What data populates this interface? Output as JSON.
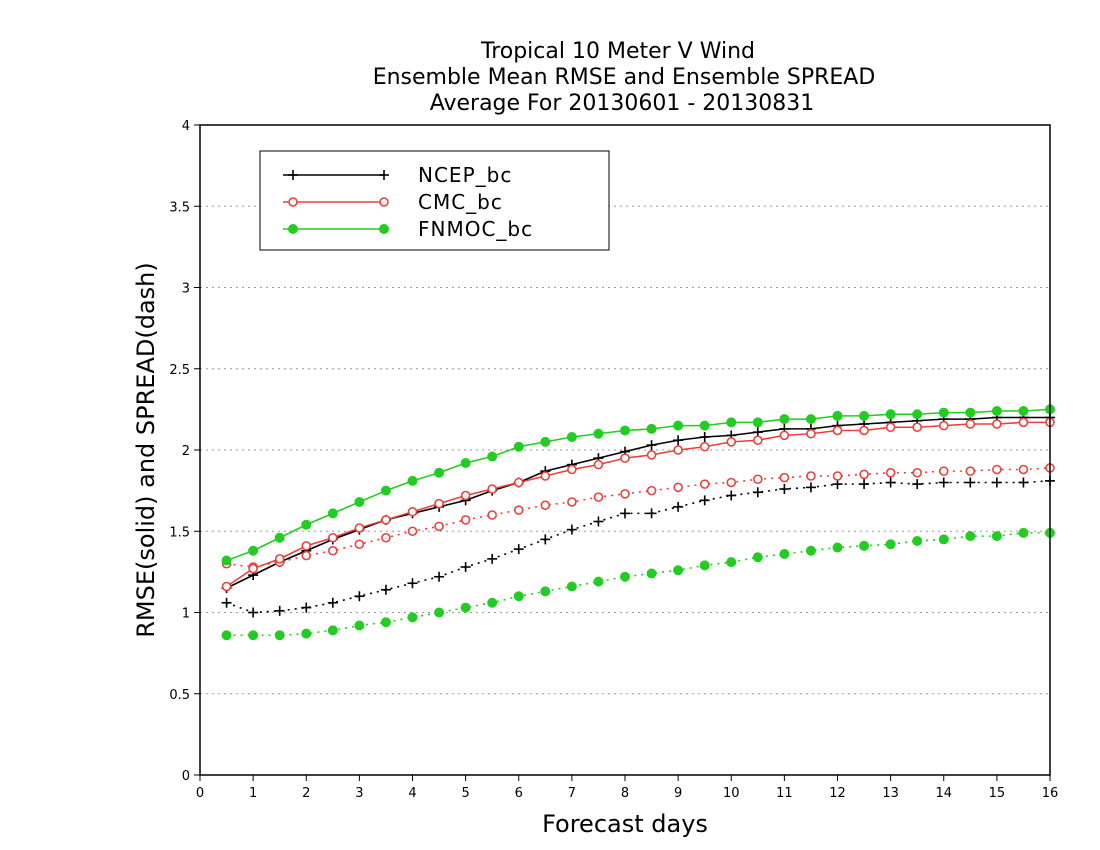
{
  "chart_data": {
    "type": "line",
    "title_lines": [
      "Tropical 10 Meter V Wind",
      "Ensemble Mean RMSE and Ensemble SPREAD",
      "Average For 20130601 - 20130831"
    ],
    "xlabel": "Forecast days",
    "ylabel": "RMSE(solid) and SPREAD(dash)",
    "xlim": [
      0,
      16
    ],
    "ylim": [
      0,
      4
    ],
    "xticks": [
      "0",
      "1",
      "2",
      "3",
      "4",
      "5",
      "6",
      "7",
      "8",
      "9",
      "10",
      "11",
      "12",
      "13",
      "14",
      "15",
      "16"
    ],
    "yticks": [
      "0",
      "0.5",
      "1",
      "1.5",
      "2",
      "2.5",
      "3",
      "3.5",
      "4"
    ],
    "grid": "horizontal dotted",
    "legend_position": "top-left",
    "x": [
      0.5,
      1,
      1.5,
      2,
      2.5,
      3,
      3.5,
      4,
      4.5,
      5,
      5.5,
      6,
      6.5,
      7,
      7.5,
      8,
      8.5,
      9,
      9.5,
      10,
      10.5,
      11,
      11.5,
      12,
      12.5,
      13,
      13.5,
      14,
      14.5,
      15,
      15.5,
      16
    ],
    "series": [
      {
        "name": "NCEP_bc",
        "color": "#000000",
        "marker": "plus",
        "rmse": [
          1.15,
          1.23,
          1.31,
          1.38,
          1.45,
          1.51,
          1.57,
          1.61,
          1.65,
          1.69,
          1.75,
          1.8,
          1.87,
          1.91,
          1.95,
          1.99,
          2.03,
          2.06,
          2.08,
          2.09,
          2.11,
          2.13,
          2.13,
          2.15,
          2.16,
          2.17,
          2.18,
          2.19,
          2.19,
          2.2,
          2.2,
          2.2
        ],
        "spread": [
          1.06,
          1.0,
          1.01,
          1.03,
          1.06,
          1.1,
          1.14,
          1.18,
          1.22,
          1.28,
          1.33,
          1.39,
          1.45,
          1.51,
          1.56,
          1.61,
          1.61,
          1.65,
          1.69,
          1.72,
          1.74,
          1.76,
          1.77,
          1.79,
          1.79,
          1.8,
          1.79,
          1.8,
          1.8,
          1.8,
          1.8,
          1.81
        ]
      },
      {
        "name": "CMC_bc",
        "color": "#e8403c",
        "marker": "open-circle",
        "rmse": [
          1.16,
          1.27,
          1.33,
          1.41,
          1.46,
          1.52,
          1.57,
          1.62,
          1.67,
          1.72,
          1.76,
          1.8,
          1.84,
          1.88,
          1.91,
          1.95,
          1.97,
          2.0,
          2.02,
          2.05,
          2.06,
          2.09,
          2.1,
          2.12,
          2.12,
          2.14,
          2.14,
          2.15,
          2.16,
          2.16,
          2.17,
          2.17
        ],
        "spread": [
          1.3,
          1.28,
          1.31,
          1.35,
          1.38,
          1.42,
          1.46,
          1.5,
          1.53,
          1.57,
          1.6,
          1.63,
          1.66,
          1.68,
          1.71,
          1.73,
          1.75,
          1.77,
          1.79,
          1.8,
          1.82,
          1.83,
          1.84,
          1.84,
          1.85,
          1.86,
          1.86,
          1.87,
          1.87,
          1.88,
          1.88,
          1.89
        ]
      },
      {
        "name": "FNMOC_bc",
        "color": "#22cc22",
        "marker": "filled-circle",
        "rmse": [
          1.32,
          1.38,
          1.46,
          1.54,
          1.61,
          1.68,
          1.75,
          1.81,
          1.86,
          1.92,
          1.96,
          2.02,
          2.05,
          2.08,
          2.1,
          2.12,
          2.13,
          2.15,
          2.15,
          2.17,
          2.17,
          2.19,
          2.19,
          2.21,
          2.21,
          2.22,
          2.22,
          2.23,
          2.23,
          2.24,
          2.24,
          2.25
        ],
        "spread": [
          0.86,
          0.86,
          0.86,
          0.87,
          0.89,
          0.92,
          0.94,
          0.97,
          1.0,
          1.03,
          1.06,
          1.1,
          1.13,
          1.16,
          1.19,
          1.22,
          1.24,
          1.26,
          1.29,
          1.31,
          1.34,
          1.36,
          1.38,
          1.4,
          1.41,
          1.42,
          1.44,
          1.45,
          1.47,
          1.47,
          1.49,
          1.49
        ]
      }
    ]
  }
}
